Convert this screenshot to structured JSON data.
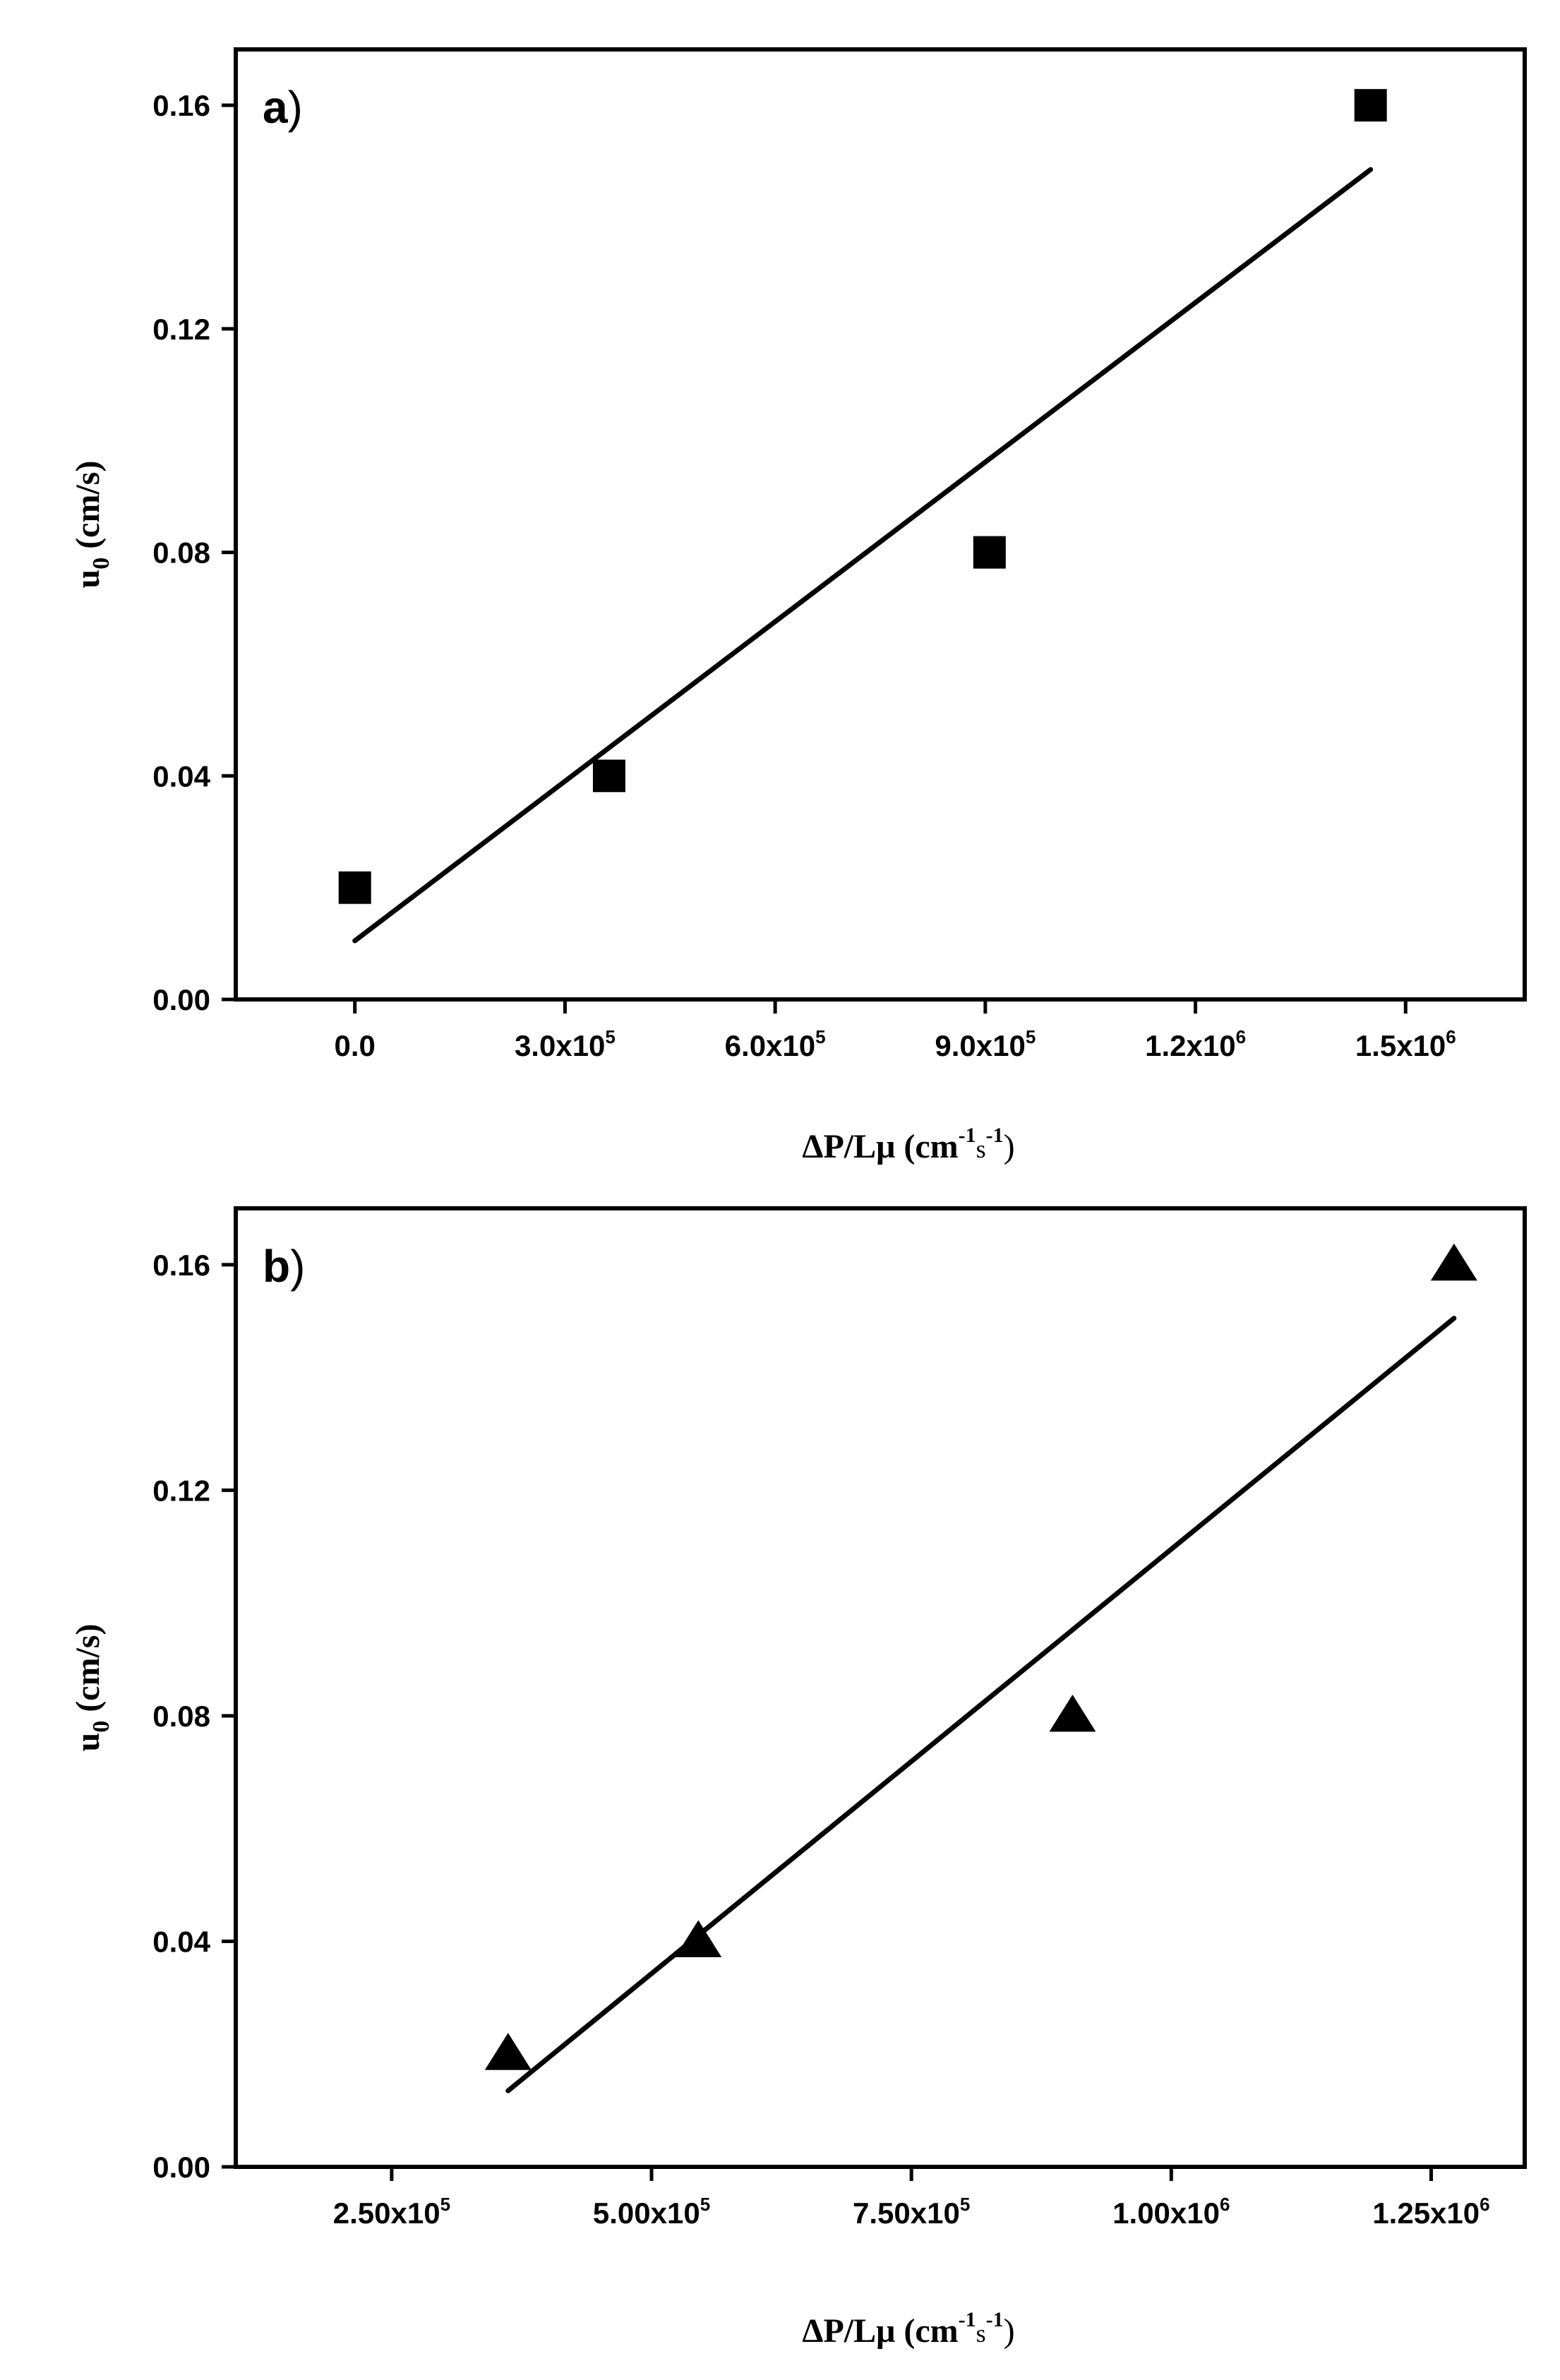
{
  "chart_data": [
    {
      "type": "scatter",
      "panel_label": "a",
      "xlabel": {
        "main": "ΔP/Lμ  (cm",
        "sup1": "-1",
        "mid": "s",
        "sup2": "-1",
        "end": ")"
      },
      "ylabel": {
        "main": "u",
        "sub": "0",
        "rest": " (cm/s)"
      },
      "xlim": [
        -170000,
        1670000
      ],
      "ylim": [
        0,
        0.17
      ],
      "x_ticks": [
        {
          "value": 0,
          "mantissa": "0.0",
          "exp": ""
        },
        {
          "value": 300000,
          "mantissa": "3.0x10",
          "exp": "5"
        },
        {
          "value": 600000,
          "mantissa": "6.0x10",
          "exp": "5"
        },
        {
          "value": 900000,
          "mantissa": "9.0x10",
          "exp": "5"
        },
        {
          "value": 1200000,
          "mantissa": "1.2x10",
          "exp": "6"
        },
        {
          "value": 1500000,
          "mantissa": "1.5x10",
          "exp": "6"
        }
      ],
      "y_ticks": [
        "0.00",
        "0.04",
        "0.08",
        "0.12",
        "0.16"
      ],
      "marker": "square",
      "points": [
        {
          "x": 0,
          "y": 0.02
        },
        {
          "x": 363000,
          "y": 0.04
        },
        {
          "x": 906000,
          "y": 0.08
        },
        {
          "x": 1450000,
          "y": 0.16
        }
      ],
      "fit_line": {
        "x": [
          0,
          1450000
        ],
        "y": [
          0.0105,
          0.1485
        ]
      },
      "grid": false
    },
    {
      "type": "scatter",
      "panel_label": "b",
      "xlabel": {
        "main": "ΔP/Lμ  (cm",
        "sup1": "-1",
        "mid": "s",
        "sup2": "-1",
        "end": ")"
      },
      "ylabel": {
        "main": "u",
        "sub": "0",
        "rest": " (cm/s)"
      },
      "xlim": [
        100000,
        1340000
      ],
      "ylim": [
        0,
        0.17
      ],
      "x_ticks": [
        {
          "value": 250000,
          "mantissa": "2.50x10",
          "exp": "5"
        },
        {
          "value": 500000,
          "mantissa": "5.00x10",
          "exp": "5"
        },
        {
          "value": 750000,
          "mantissa": "7.50x10",
          "exp": "5"
        },
        {
          "value": 1000000,
          "mantissa": "1.00x10",
          "exp": "6"
        },
        {
          "value": 1250000,
          "mantissa": "1.25x10",
          "exp": "6"
        }
      ],
      "y_ticks": [
        "0.00",
        "0.04",
        "0.08",
        "0.12",
        "0.16"
      ],
      "marker": "triangle",
      "points": [
        {
          "x": 362000,
          "y": 0.02
        },
        {
          "x": 545000,
          "y": 0.04
        },
        {
          "x": 905000,
          "y": 0.08
        },
        {
          "x": 1272000,
          "y": 0.16
        }
      ],
      "fit_line": {
        "x": [
          362000,
          1272000
        ],
        "y": [
          0.0135,
          0.1505
        ]
      },
      "grid": false
    }
  ]
}
